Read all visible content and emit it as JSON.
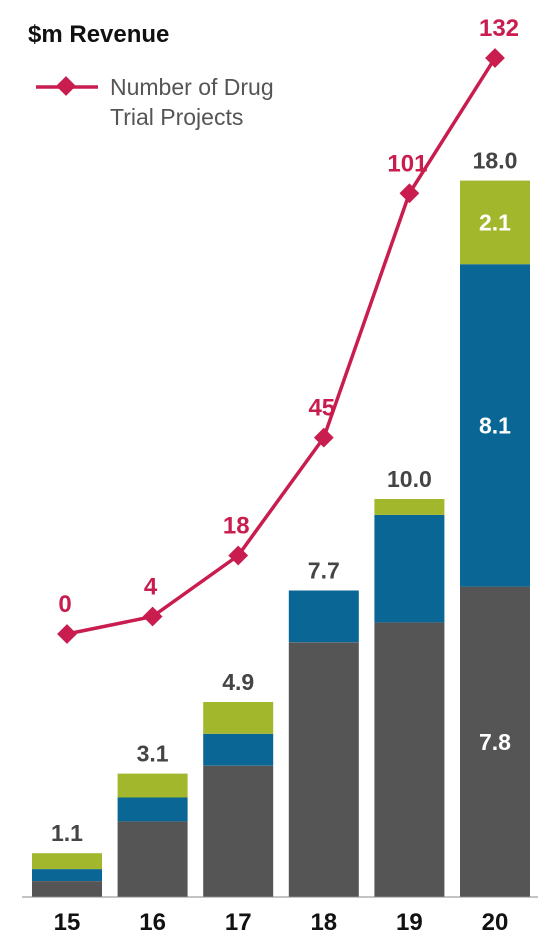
{
  "chart_data": {
    "type": "bar",
    "title": "$m Revenue",
    "categories": [
      "15",
      "16",
      "17",
      "18",
      "19",
      "20"
    ],
    "series": [
      {
        "values": [
          0.4,
          1.9,
          3.3,
          6.4,
          6.9,
          7.8
        ],
        "color": "#555555"
      },
      {
        "values": [
          0.3,
          0.6,
          0.8,
          1.3,
          2.7,
          8.1
        ],
        "color": "#0a6694"
      },
      {
        "values": [
          0.4,
          0.6,
          0.8,
          0.0,
          0.4,
          2.1
        ],
        "color": "#a3b72c"
      }
    ],
    "totals": [
      "1.1",
      "3.1",
      "4.9",
      "7.7",
      "10.0",
      "18.0"
    ],
    "segment_labels": [
      {
        "category": "20",
        "series": 0,
        "text": "7.8"
      },
      {
        "category": "20",
        "series": 1,
        "text": "8.1"
      },
      {
        "category": "20",
        "series": 2,
        "text": "2.1"
      }
    ],
    "line_series": {
      "name": "Number of Drug Trial Projects",
      "name_lines": [
        "Number of Drug",
        "Trial Projects"
      ],
      "values": [
        0,
        4,
        18,
        45,
        101,
        132
      ],
      "labels": [
        "0",
        "4",
        "18",
        "45",
        "101",
        "132"
      ],
      "color": "#c81d4e"
    },
    "ylim": [
      0,
      18
    ],
    "line_ylim": [
      0,
      132
    ],
    "grid": false,
    "legend_placement": "top-left"
  }
}
